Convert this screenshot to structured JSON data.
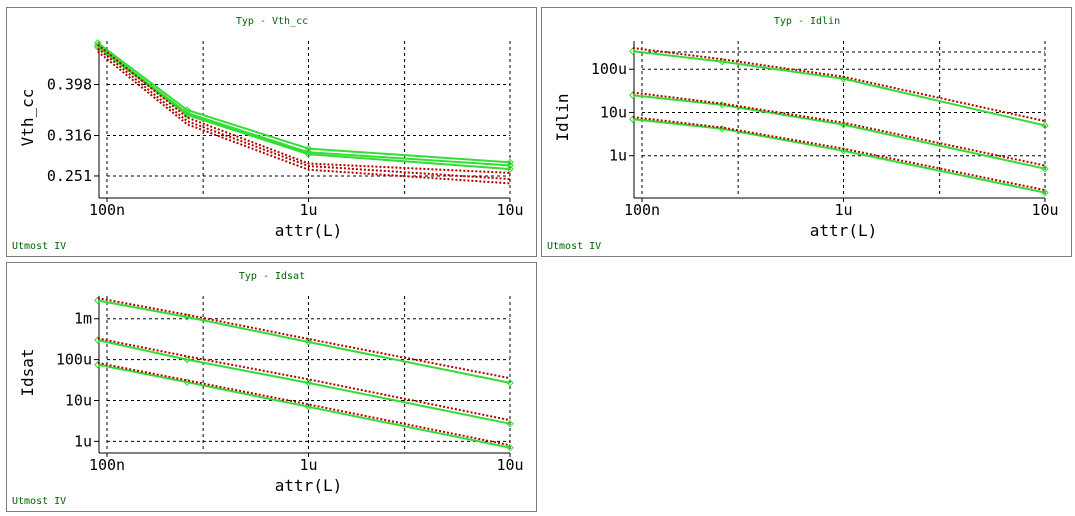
{
  "colors": {
    "measured": "#33dd33",
    "simulated": "#b00000",
    "text_green": "#006400"
  },
  "chart_data": [
    {
      "type": "line",
      "title": "Typ - Vth_cc",
      "footer": "Utmost IV",
      "xlabel": "attr(L)",
      "ylabel": "Vth_cc",
      "xscale": "log",
      "xlim": [
        1e-07,
        1e-05
      ],
      "ylim": [
        0.222,
        0.468
      ],
      "xticks": [
        {
          "v": 1e-07,
          "label": "100n"
        },
        {
          "v": 1e-06,
          "label": "1u"
        },
        {
          "v": 1e-05,
          "label": "10u"
        }
      ],
      "yticks": [
        {
          "v": 0.251,
          "label": "0.251"
        },
        {
          "v": 0.316,
          "label": "0.316"
        },
        {
          "v": 0.398,
          "label": "0.398"
        }
      ],
      "ygrid": [
        0.251,
        0.316,
        0.398
      ],
      "x": [
        9e-08,
        2.5e-07,
        1e-06,
        1e-05
      ],
      "series": [
        {
          "group": "measured",
          "values": [
            0.465,
            0.357,
            0.295,
            0.273
          ]
        },
        {
          "group": "measured",
          "values": [
            0.461,
            0.352,
            0.289,
            0.268
          ]
        },
        {
          "group": "measured",
          "values": [
            0.458,
            0.349,
            0.286,
            0.262
          ]
        },
        {
          "group": "simulated",
          "values": [
            0.462,
            0.345,
            0.271,
            0.256
          ]
        },
        {
          "group": "simulated",
          "values": [
            0.456,
            0.339,
            0.267,
            0.246
          ]
        },
        {
          "group": "simulated",
          "values": [
            0.451,
            0.334,
            0.261,
            0.239
          ]
        }
      ]
    },
    {
      "type": "line",
      "title": "Typ - Idlin",
      "footer": "Utmost IV",
      "xlabel": "attr(L)",
      "ylabel": "Idlin",
      "xscale": "log",
      "yscale": "log",
      "xlim": [
        1e-07,
        1e-05
      ],
      "ylim": [
        1.3e-07,
        0.00045
      ],
      "xticks": [
        {
          "v": 1e-07,
          "label": "100n"
        },
        {
          "v": 1e-06,
          "label": "1u"
        },
        {
          "v": 1e-05,
          "label": "10u"
        }
      ],
      "yticks": [
        {
          "v": 1e-06,
          "label": "1u"
        },
        {
          "v": 1e-05,
          "label": "10u"
        },
        {
          "v": 0.0001,
          "label": "100u"
        }
      ],
      "ygrid": [
        1e-06,
        1e-05,
        0.0001,
        0.00025
      ],
      "x": [
        9e-08,
        2.5e-07,
        1e-06,
        1e-05
      ],
      "series": [
        {
          "group": "measured",
          "values": [
            0.00026,
            0.00015,
            6e-05,
            5e-06
          ]
        },
        {
          "group": "measured",
          "values": [
            2.5e-05,
            1.5e-05,
            5.2e-06,
            5e-07
          ]
        },
        {
          "group": "measured",
          "values": [
            7e-06,
            4.2e-06,
            1.3e-06,
            1.4e-07
          ]
        },
        {
          "group": "simulated",
          "values": [
            0.00031,
            0.00017,
            6.7e-05,
            6.3e-06
          ]
        },
        {
          "group": "simulated",
          "values": [
            2.9e-05,
            1.6e-05,
            5.8e-06,
            5.9e-07
          ]
        },
        {
          "group": "simulated",
          "values": [
            7.8e-06,
            4.5e-06,
            1.45e-06,
            1.6e-07
          ]
        }
      ]
    },
    {
      "type": "line",
      "title": "Typ - Idsat",
      "footer": "Utmost IV",
      "xlabel": "attr(L)",
      "ylabel": "Idsat",
      "xscale": "log",
      "yscale": "log",
      "xlim": [
        1e-07,
        1e-05
      ],
      "ylim": [
        6.5e-07,
        0.0036
      ],
      "xticks": [
        {
          "v": 1e-07,
          "label": "100n"
        },
        {
          "v": 1e-06,
          "label": "1u"
        },
        {
          "v": 1e-05,
          "label": "10u"
        }
      ],
      "yticks": [
        {
          "v": 1e-06,
          "label": "1u"
        },
        {
          "v": 1e-05,
          "label": "10u"
        },
        {
          "v": 0.0001,
          "label": "100u"
        },
        {
          "v": 0.001,
          "label": "1m"
        }
      ],
      "ygrid": [
        1e-06,
        1e-05,
        0.0001,
        0.001
      ],
      "x": [
        9e-08,
        2.5e-07,
        1e-06,
        1e-05
      ],
      "series": [
        {
          "group": "measured",
          "values": [
            0.0028,
            0.0011,
            0.00027,
            2.7e-05
          ]
        },
        {
          "group": "measured",
          "values": [
            0.0003,
            0.0001,
            2.7e-05,
            2.7e-06
          ]
        },
        {
          "group": "measured",
          "values": [
            7.5e-05,
            2.8e-05,
            7e-06,
            7e-07
          ]
        },
        {
          "group": "simulated",
          "values": [
            0.0032,
            0.00125,
            0.00032,
            3.5e-05
          ]
        },
        {
          "group": "simulated",
          "values": [
            0.00033,
            0.00012,
            3.3e-05,
            3.3e-06
          ]
        },
        {
          "group": "simulated",
          "values": [
            8.3e-05,
            3.1e-05,
            8e-06,
            8e-07
          ]
        }
      ]
    }
  ]
}
